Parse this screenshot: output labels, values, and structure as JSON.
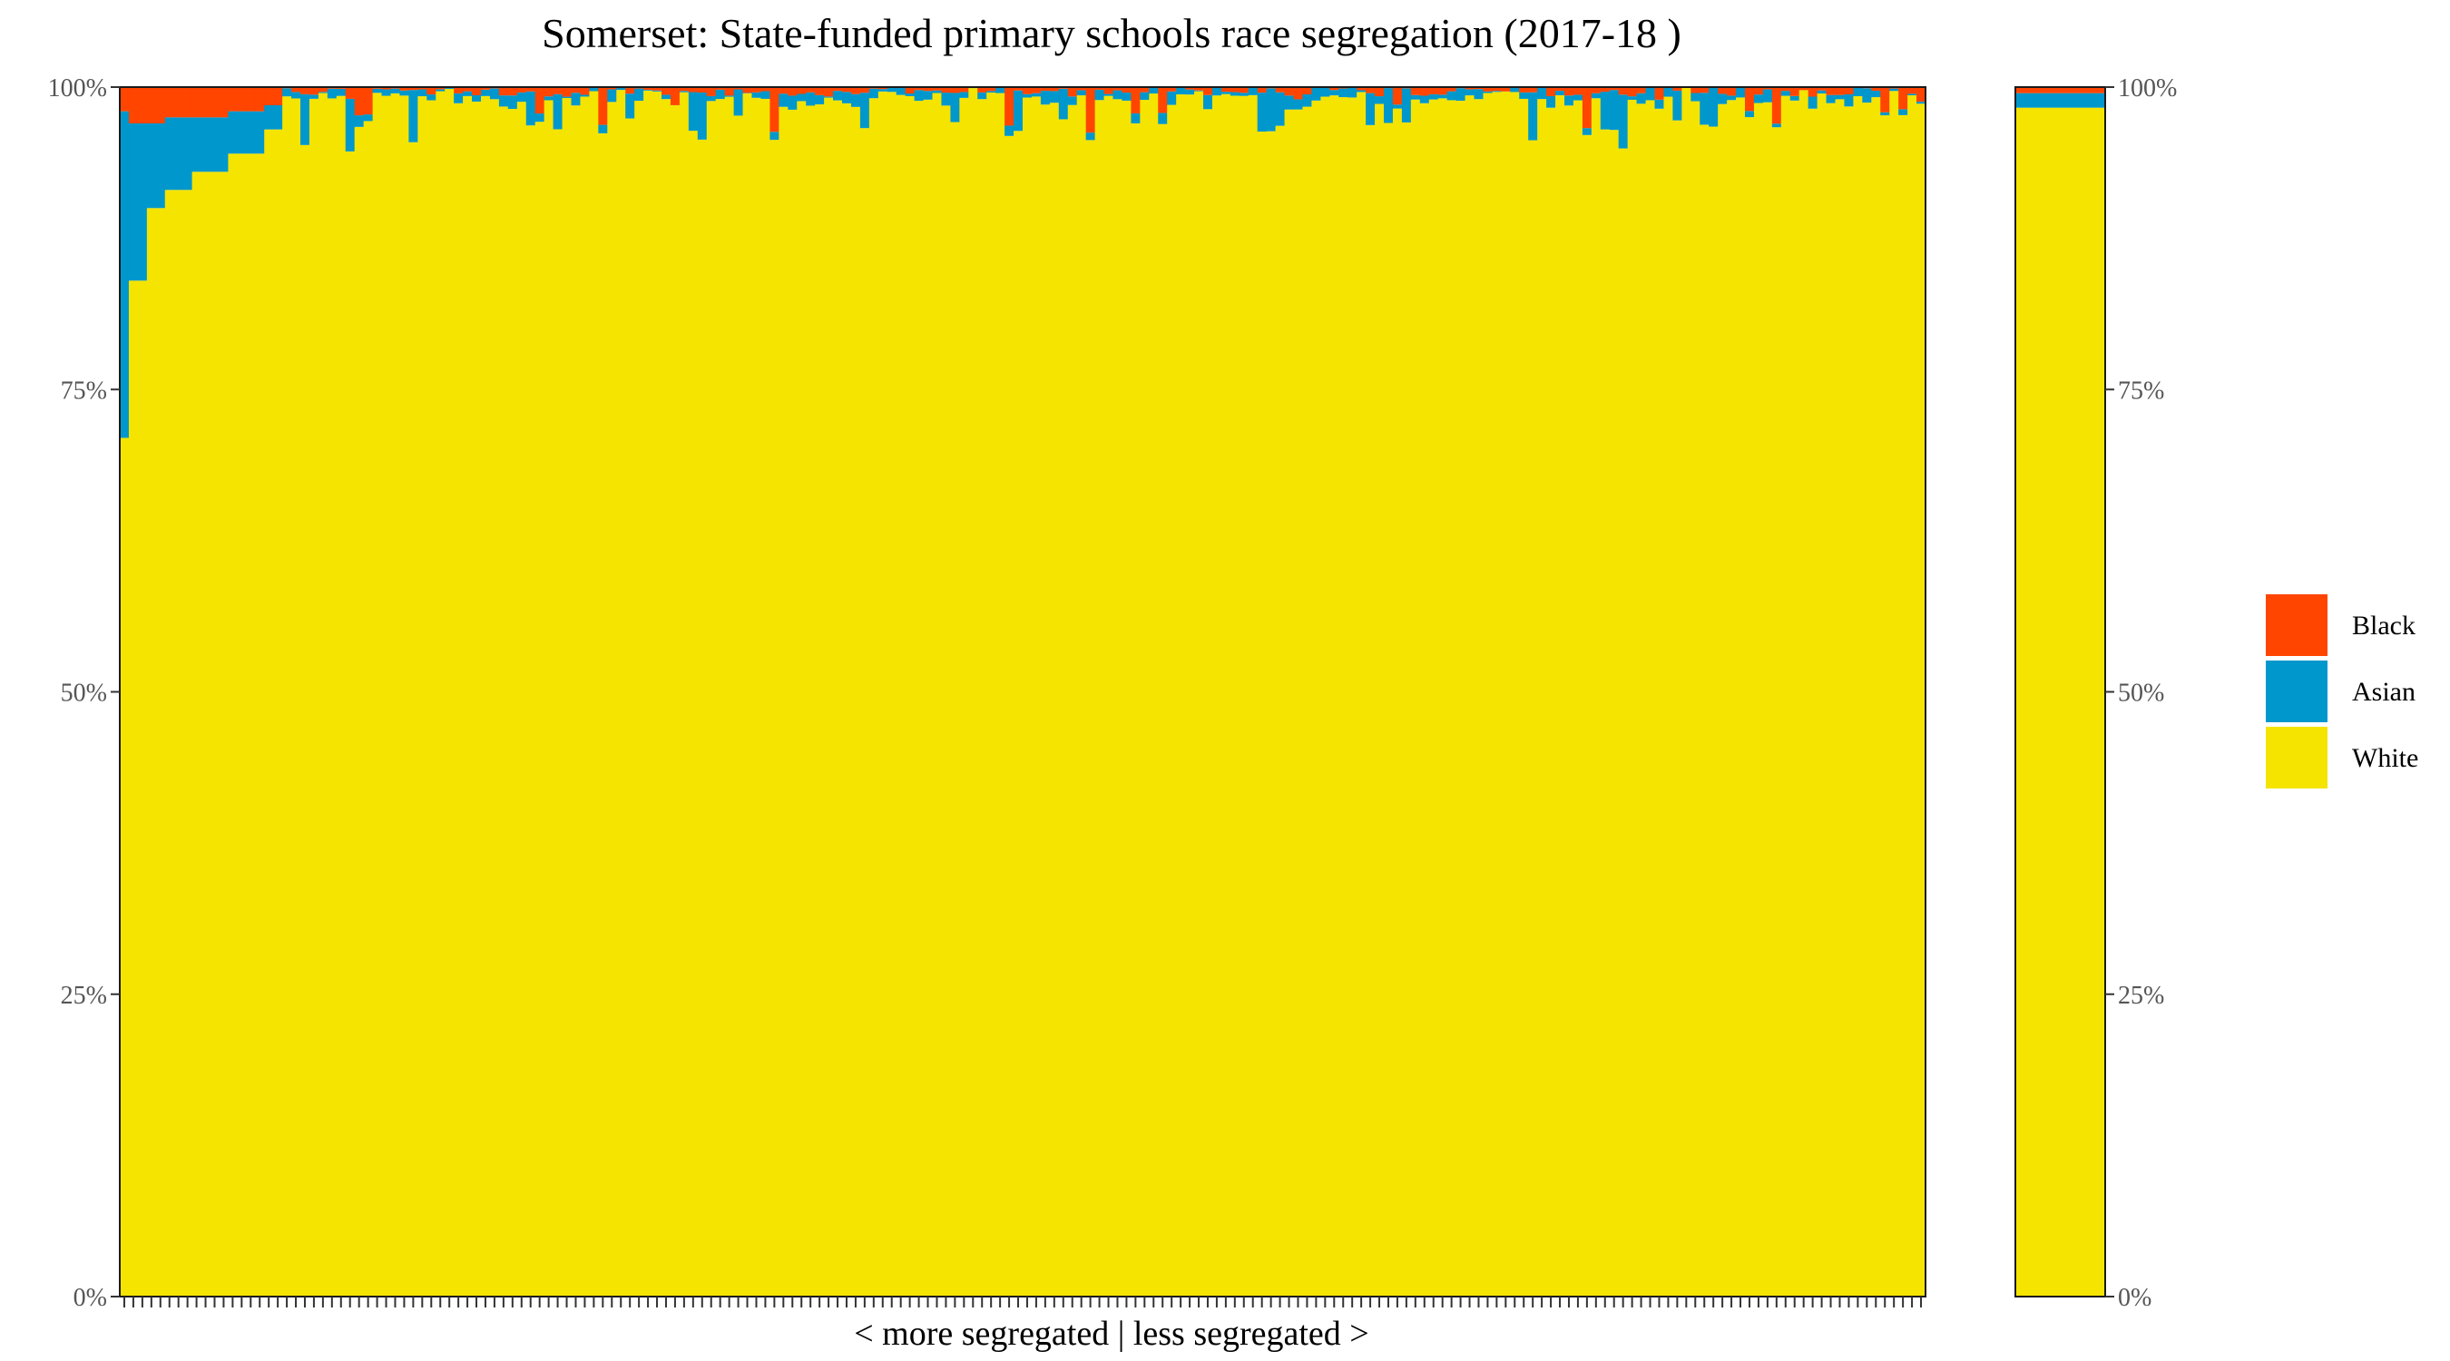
{
  "colors": {
    "black": "#FF4500",
    "asian": "#0097CC",
    "white": "#F4E400",
    "frame": "#1a1a1a",
    "background": "#FFFFFF"
  },
  "chart_data": {
    "type": "bar",
    "stacked": true,
    "title": "Somerset: State-funded primary schools race segregation (2017-18 )",
    "xlabel": "< more segregated | less segregated >",
    "ylabel": "",
    "ylim": [
      0,
      1
    ],
    "y_ticks": [
      "0%",
      "25%",
      "50%",
      "75%",
      "100%"
    ],
    "y_tick_values": [
      0,
      0.25,
      0.5,
      0.75,
      1
    ],
    "legend": {
      "position": "right",
      "entries": [
        "Black",
        "Asian",
        "White"
      ]
    },
    "grid": false,
    "series": [
      {
        "name": "Black",
        "color_key": "black"
      },
      {
        "name": "Asian",
        "color_key": "asian"
      },
      {
        "name": "White",
        "color_key": "white"
      }
    ],
    "schools": {
      "count": 200,
      "description_segments": [
        {
          "range": [
            0,
            1
          ],
          "white": 0.71,
          "asian": 0.27,
          "black": 0.02
        },
        {
          "range": [
            1,
            3
          ],
          "white": 0.84,
          "asian": 0.13,
          "black": 0.03
        },
        {
          "range": [
            3,
            5
          ],
          "white": 0.9,
          "asian": 0.07,
          "black": 0.03
        },
        {
          "range": [
            5,
            8
          ],
          "white": 0.915,
          "asian": 0.06,
          "black": 0.025
        },
        {
          "range": [
            8,
            12
          ],
          "white": 0.93,
          "asian": 0.045,
          "black": 0.025
        },
        {
          "range": [
            12,
            16
          ],
          "white": 0.945,
          "asian": 0.035,
          "black": 0.02
        },
        {
          "range": [
            16,
            18
          ],
          "white": 0.965,
          "asian": 0.02,
          "black": 0.015
        },
        {
          "range": [
            18,
            200
          ],
          "white": 0.985,
          "asian": 0.01,
          "black": 0.005
        }
      ],
      "tail_mean": {
        "white": 0.99,
        "asian": 0.005,
        "black": 0.005
      }
    },
    "overall": {
      "white": 0.983,
      "asian": 0.012,
      "black": 0.005
    }
  }
}
